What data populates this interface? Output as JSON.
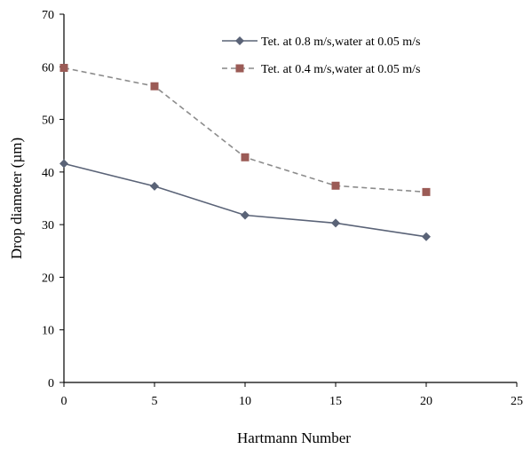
{
  "chart_data": {
    "type": "line",
    "title": "",
    "xlabel": "Hartmann Number",
    "ylabel": "Drop diameter (µm)",
    "xlim": [
      0,
      25
    ],
    "ylim": [
      0,
      70
    ],
    "xticks": [
      "0",
      "5",
      "10",
      "15",
      "20",
      "25"
    ],
    "yticks": [
      "0",
      "10",
      "20",
      "30",
      "40",
      "50",
      "60",
      "70"
    ],
    "grid": false,
    "legend_position": "top-right",
    "series": [
      {
        "name": "Tet. at 0.8 m/s,water at 0.05 m/s",
        "x": [
          0,
          5,
          10,
          15,
          20
        ],
        "y": [
          41.6,
          37.3,
          31.8,
          30.3,
          27.7
        ],
        "color": "#5a6377",
        "line_style": "solid",
        "marker": "diamond"
      },
      {
        "name": "Tet. at 0.4 m/s,water at 0.05 m/s",
        "x": [
          0,
          5,
          10,
          15,
          20
        ],
        "y": [
          59.8,
          56.3,
          42.8,
          37.4,
          36.2
        ],
        "color": "#9b5b56",
        "line_style": "dashed",
        "line_color": "#8c8c8c",
        "marker": "square"
      }
    ]
  }
}
